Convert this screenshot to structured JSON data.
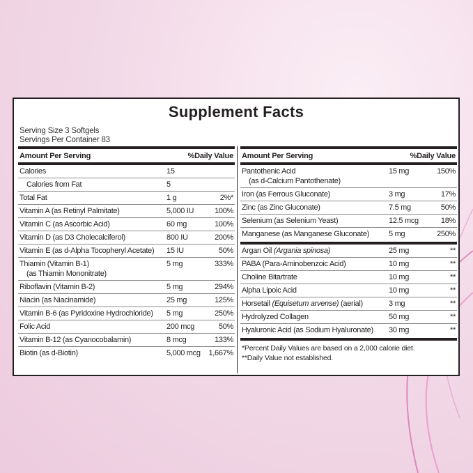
{
  "title": "Supplement Facts",
  "serving_size": "Serving Size 3 Softgels",
  "servings_per_container": "Servings Per Container 83",
  "header": {
    "amount": "Amount Per Serving",
    "dv": "%Daily Value"
  },
  "left_rows": [
    {
      "name": "Calories",
      "amount": "15",
      "dv": ""
    },
    {
      "name": "Calories from Fat",
      "amount": "5",
      "dv": "",
      "indent": true
    },
    {
      "name": "Total Fat",
      "amount": "1 g",
      "dv": "2%*"
    },
    {
      "name": "Vitamin A (as Retinyl Palmitate)",
      "amount": "5,000 IU",
      "dv": "100%"
    },
    {
      "name": "Vitamin C (as Ascorbic Acid)",
      "amount": "60 mg",
      "dv": "100%"
    },
    {
      "name": "Vitamin D (as D3 Cholecalciferol)",
      "amount": "800 IU",
      "dv": "200%"
    },
    {
      "name": "Vitamin E (as d-Alpha Tocopheryl Acetate)",
      "amount": "15 IU",
      "dv": "50%"
    },
    {
      "name": "Thiamin (Vitamin B-1)",
      "sub": "(as Thiamin Mononitrate)",
      "amount": "5 mg",
      "dv": "333%"
    },
    {
      "name": "Riboflavin (Vitamin B-2)",
      "amount": "5 mg",
      "dv": "294%"
    },
    {
      "name": "Niacin (as Niacinamide)",
      "amount": "25 mg",
      "dv": "125%"
    },
    {
      "name": "Vitamin B-6 (as Pyridoxine Hydrochloride)",
      "amount": "5 mg",
      "dv": "250%"
    },
    {
      "name": "Folic Acid",
      "amount": "200 mcg",
      "dv": "50%"
    },
    {
      "name": "Vitamin B-12 (as Cyanocobalamin)",
      "amount": "8 mcg",
      "dv": "133%"
    },
    {
      "name": "Biotin (as d-Biotin)",
      "amount": "5,000 mcg",
      "dv": "1,667%"
    }
  ],
  "right_rows": [
    {
      "name": "Pantothenic Acid",
      "sub": "(as d-Calcium Pantothenate)",
      "amount": "15 mg",
      "dv": "150%"
    },
    {
      "name": "Iron (as Ferrous Gluconate)",
      "amount": "3 mg",
      "dv": "17%"
    },
    {
      "name": "Zinc (as Zinc Gluconate)",
      "amount": "7.5 mg",
      "dv": "50%"
    },
    {
      "name": "Selenium (as Selenium Yeast)",
      "amount": "12.5 mcg",
      "dv": "18%"
    },
    {
      "name": "Manganese (as Manganese Gluconate)",
      "amount": "5 mg",
      "dv": "250%"
    }
  ],
  "right_rows2": [
    {
      "name": "Argan Oil ",
      "italic": "(Argania spinosa)",
      "amount": "25 mg",
      "dv": "**"
    },
    {
      "name": "PABA (Para-Aminobenzoic Acid)",
      "amount": "10 mg",
      "dv": "**"
    },
    {
      "name": "Choline Bitartrate",
      "amount": "10 mg",
      "dv": "**"
    },
    {
      "name": "Alpha Lipoic Acid",
      "amount": "10 mg",
      "dv": "**"
    },
    {
      "name": "Horsetail ",
      "italic": "(Equisetum arvense)",
      "suffix": " (aerial)",
      "amount": "3 mg",
      "dv": "**"
    },
    {
      "name": "Hydrolyzed Collagen",
      "amount": "50 mg",
      "dv": "**"
    },
    {
      "name": "Hyaluronic Acid (as Sodium Hyaluronate)",
      "amount": "30 mg",
      "dv": "**"
    }
  ],
  "footnotes": [
    "*Percent Daily Values are based on a 2,000 calorie diet.",
    "**Daily Value not established."
  ]
}
